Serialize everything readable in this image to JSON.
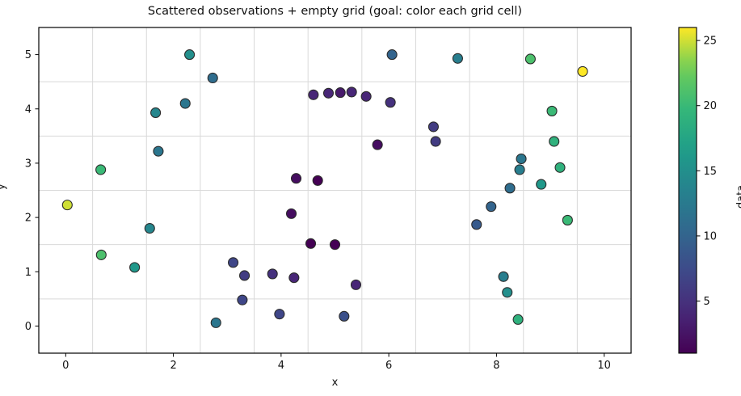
{
  "chart_data": {
    "type": "scatter",
    "title": "Scattered observations + empty grid (goal: color each grid cell)",
    "xlabel": "x",
    "ylabel": "y",
    "xlim": [
      -0.5,
      10.5
    ],
    "ylim": [
      -0.5,
      5.5
    ],
    "x_ticks": [
      0,
      2,
      4,
      6,
      8,
      10
    ],
    "y_ticks": [
      0,
      1,
      2,
      3,
      4,
      5
    ],
    "grid": {
      "style": "empty 1x1 cells centered on integers",
      "x_cell_edges": [
        0.5,
        1.5,
        2.5,
        3.5,
        4.5,
        5.5,
        6.5,
        7.5,
        8.5,
        9.5
      ],
      "y_cell_edges": [
        0.5,
        1.5,
        2.5,
        3.5,
        4.5
      ],
      "line_color": "#d9d9d9"
    },
    "colorbar": {
      "label": "data",
      "colormap": "viridis",
      "vmin": 1,
      "vmax": 26,
      "ticks": [
        5,
        10,
        15,
        20,
        25
      ]
    },
    "marker": {
      "edge_color": "#2b2b2b",
      "radius_px": 6
    },
    "points": [
      {
        "x": 2.3,
        "y": 5.0,
        "value": 15
      },
      {
        "x": 2.73,
        "y": 4.57,
        "value": 11
      },
      {
        "x": 2.22,
        "y": 4.1,
        "value": 12
      },
      {
        "x": 1.67,
        "y": 3.93,
        "value": 14
      },
      {
        "x": 1.72,
        "y": 3.22,
        "value": 12
      },
      {
        "x": 0.65,
        "y": 2.88,
        "value": 20
      },
      {
        "x": 0.03,
        "y": 2.23,
        "value": 25
      },
      {
        "x": 1.56,
        "y": 1.8,
        "value": 14
      },
      {
        "x": 0.66,
        "y": 1.31,
        "value": 21
      },
      {
        "x": 1.28,
        "y": 1.08,
        "value": 16
      },
      {
        "x": 3.11,
        "y": 1.17,
        "value": 7
      },
      {
        "x": 2.79,
        "y": 0.06,
        "value": 12
      },
      {
        "x": 4.6,
        "y": 4.26,
        "value": 4
      },
      {
        "x": 4.88,
        "y": 4.29,
        "value": 4
      },
      {
        "x": 5.1,
        "y": 4.3,
        "value": 3
      },
      {
        "x": 5.31,
        "y": 4.31,
        "value": 4
      },
      {
        "x": 5.58,
        "y": 4.23,
        "value": 4
      },
      {
        "x": 6.03,
        "y": 4.12,
        "value": 5
      },
      {
        "x": 6.06,
        "y": 5.0,
        "value": 10
      },
      {
        "x": 5.79,
        "y": 3.34,
        "value": 2
      },
      {
        "x": 4.28,
        "y": 2.72,
        "value": 2
      },
      {
        "x": 4.68,
        "y": 2.68,
        "value": 1
      },
      {
        "x": 4.19,
        "y": 2.07,
        "value": 2
      },
      {
        "x": 4.55,
        "y": 1.52,
        "value": 1
      },
      {
        "x": 5.0,
        "y": 1.5,
        "value": 1
      },
      {
        "x": 3.32,
        "y": 0.93,
        "value": 6
      },
      {
        "x": 3.84,
        "y": 0.96,
        "value": 5
      },
      {
        "x": 4.24,
        "y": 0.89,
        "value": 4
      },
      {
        "x": 5.39,
        "y": 0.76,
        "value": 4
      },
      {
        "x": 3.28,
        "y": 0.48,
        "value": 7
      },
      {
        "x": 3.97,
        "y": 0.22,
        "value": 7
      },
      {
        "x": 5.17,
        "y": 0.18,
        "value": 8
      },
      {
        "x": 7.28,
        "y": 4.93,
        "value": 13
      },
      {
        "x": 8.63,
        "y": 4.92,
        "value": 21
      },
      {
        "x": 9.6,
        "y": 4.69,
        "value": 26
      },
      {
        "x": 9.03,
        "y": 3.96,
        "value": 20
      },
      {
        "x": 6.83,
        "y": 3.67,
        "value": 6
      },
      {
        "x": 6.87,
        "y": 3.4,
        "value": 6
      },
      {
        "x": 9.07,
        "y": 3.4,
        "value": 19
      },
      {
        "x": 8.46,
        "y": 3.08,
        "value": 12
      },
      {
        "x": 8.43,
        "y": 2.88,
        "value": 13
      },
      {
        "x": 9.18,
        "y": 2.92,
        "value": 19
      },
      {
        "x": 8.83,
        "y": 2.61,
        "value": 16
      },
      {
        "x": 8.25,
        "y": 2.54,
        "value": 11
      },
      {
        "x": 7.9,
        "y": 2.2,
        "value": 10
      },
      {
        "x": 7.63,
        "y": 1.87,
        "value": 9
      },
      {
        "x": 9.32,
        "y": 1.95,
        "value": 20
      },
      {
        "x": 8.13,
        "y": 0.91,
        "value": 13
      },
      {
        "x": 8.2,
        "y": 0.62,
        "value": 15
      },
      {
        "x": 8.4,
        "y": 0.12,
        "value": 19
      }
    ]
  }
}
